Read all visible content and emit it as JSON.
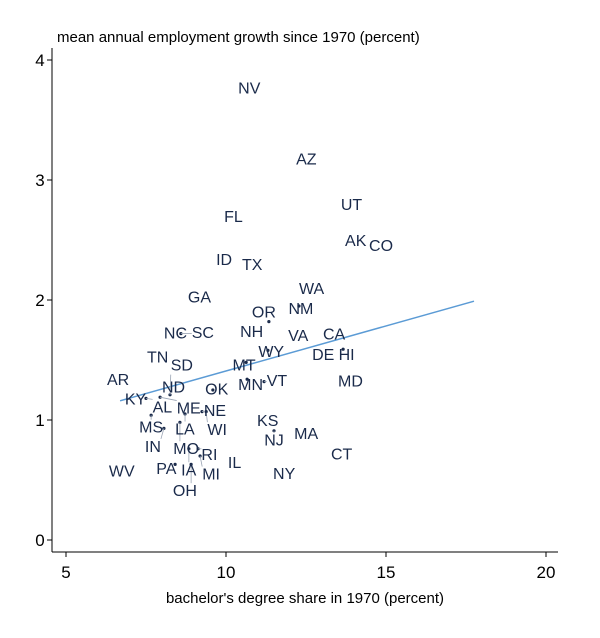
{
  "chart_data": {
    "type": "scatter",
    "title": "mean annual employment growth since 1970 (percent)",
    "xlabel": "bachelor's degree share in 1970 (percent)",
    "ylabel": "",
    "xlim": [
      4.5,
      20.5
    ],
    "ylim": [
      -0.1,
      4.15
    ],
    "xticks": [
      5,
      10,
      15,
      20
    ],
    "yticks": [
      0,
      1,
      2,
      3,
      4
    ],
    "grid": false,
    "point_label_color": "#1a2a4a",
    "fit_line_color": "#5b9bd5",
    "points": [
      {
        "label": "NV",
        "x": 10.38,
        "y": 3.77
      },
      {
        "label": "AZ",
        "x": 12.19,
        "y": 3.18
      },
      {
        "label": "FL",
        "x": 9.94,
        "y": 2.7
      },
      {
        "label": "UT",
        "x": 13.59,
        "y": 2.8
      },
      {
        "label": "AK",
        "x": 13.72,
        "y": 2.5
      },
      {
        "label": "CO",
        "x": 14.47,
        "y": 2.46
      },
      {
        "label": "ID",
        "x": 9.69,
        "y": 2.34
      },
      {
        "label": "TX",
        "x": 10.5,
        "y": 2.3
      },
      {
        "label": "GA",
        "x": 8.81,
        "y": 2.03
      },
      {
        "label": "WA",
        "x": 12.28,
        "y": 2.1
      },
      {
        "label": "NM",
        "x": 12.28,
        "y": 1.95
      },
      {
        "label": "NH",
        "x": 10.44,
        "y": 1.74
      },
      {
        "label": "OR",
        "x": 11.34,
        "y": 1.82
      },
      {
        "label": "NC",
        "x": 8.06,
        "y": 1.73
      },
      {
        "label": "SC",
        "x": 8.59,
        "y": 1.72
      },
      {
        "label": "VA",
        "x": 11.94,
        "y": 1.71
      },
      {
        "label": "CA",
        "x": 13.03,
        "y": 1.72
      },
      {
        "label": "TN",
        "x": 7.53,
        "y": 1.53
      },
      {
        "label": "WY",
        "x": 11.31,
        "y": 1.58
      },
      {
        "label": "DE",
        "x": 12.69,
        "y": 1.55
      },
      {
        "label": "HI",
        "x": 13.66,
        "y": 1.59
      },
      {
        "label": "MT",
        "x": 10.63,
        "y": 1.48
      },
      {
        "label": "AR",
        "x": 6.28,
        "y": 1.34
      },
      {
        "label": "ND",
        "x": 8.0,
        "y": 1.28
      },
      {
        "label": "MN",
        "x": 10.66,
        "y": 1.34
      },
      {
        "label": "VT",
        "x": 11.19,
        "y": 1.32
      },
      {
        "label": "MD",
        "x": 13.5,
        "y": 1.33
      },
      {
        "label": "KY",
        "x": 6.84,
        "y": 1.18
      },
      {
        "label": "AL",
        "x": 7.5,
        "y": 1.18
      },
      {
        "label": "ME",
        "x": 7.94,
        "y": 1.19
      },
      {
        "label": "SD",
        "x": 8.25,
        "y": 1.21
      },
      {
        "label": "OK",
        "x": 9.59,
        "y": 1.25
      },
      {
        "label": "MS",
        "x": 7.66,
        "y": 1.04
      },
      {
        "label": "LA",
        "x": 8.72,
        "y": 1.05
      },
      {
        "label": "NE",
        "x": 9.25,
        "y": 1.07
      },
      {
        "label": "WI",
        "x": 9.38,
        "y": 1.07
      },
      {
        "label": "MO",
        "x": 8.56,
        "y": 0.98
      },
      {
        "label": "IN",
        "x": 8.06,
        "y": 0.93
      },
      {
        "label": "KS",
        "x": 10.97,
        "y": 1.0
      },
      {
        "label": "NJ",
        "x": 11.5,
        "y": 0.91
      },
      {
        "label": "MA",
        "x": 12.13,
        "y": 0.89
      },
      {
        "label": "IA",
        "x": 8.84,
        "y": 0.76
      },
      {
        "label": "RI",
        "x": 9.13,
        "y": 0.76
      },
      {
        "label": "MI",
        "x": 9.19,
        "y": 0.7
      },
      {
        "label": "PA",
        "x": 8.41,
        "y": 0.63
      },
      {
        "label": "OH",
        "x": 8.91,
        "y": 0.63
      },
      {
        "label": "IL",
        "x": 10.06,
        "y": 0.65
      },
      {
        "label": "CT",
        "x": 13.28,
        "y": 0.72
      },
      {
        "label": "NY",
        "x": 11.47,
        "y": 0.56
      },
      {
        "label": "WV",
        "x": 6.34,
        "y": 0.58
      }
    ],
    "fit_line": {
      "x": [
        6.69,
        17.75
      ],
      "y": [
        1.16,
        1.99
      ]
    }
  }
}
